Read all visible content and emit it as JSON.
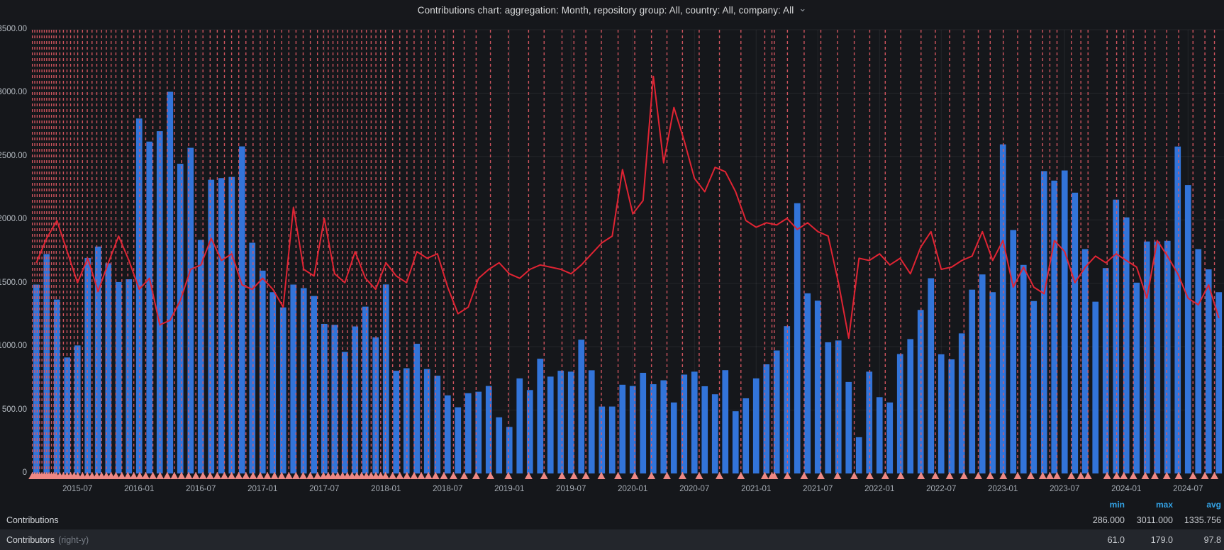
{
  "header": {
    "title": "Contributions chart: aggregation: Month, repository group: All, country: All, company: All"
  },
  "y_axis": {
    "labels": [
      "3500.00",
      "3000.00",
      "2500.00",
      "2000.00",
      "1500.00",
      "1000.00",
      "500.00",
      "0"
    ]
  },
  "x_axis": {
    "labels": [
      "2015-07",
      "2016-01",
      "2016-07",
      "2017-01",
      "2017-07",
      "2018-01",
      "2018-07",
      "2019-01",
      "2019-07",
      "2020-01",
      "2020-07",
      "2021-01",
      "2021-07",
      "2022-01",
      "2022-07",
      "2023-01",
      "2023-07",
      "2024-01",
      "2024-07"
    ]
  },
  "legend": {
    "columns": [
      "min",
      "max",
      "avg"
    ],
    "rows": [
      {
        "label": "Contributions",
        "suffix": "",
        "min": "286.000",
        "max": "3011.000",
        "avg": "1335.756"
      },
      {
        "label": "Contributors",
        "suffix": "(right-y)",
        "min": "61.0",
        "max": "179.0",
        "avg": "97.8"
      }
    ]
  },
  "chart_data": {
    "type": "bar+line",
    "title": "Contributions chart: aggregation: Month, repository group: All, country: All, company: All",
    "left_axis": {
      "label": "Contributions",
      "min": 0,
      "max": 3500,
      "grid": true
    },
    "right_axis": {
      "label": "Contributors",
      "min": 0,
      "max": 200
    },
    "categories": [
      "2015-03",
      "2015-04",
      "2015-05",
      "2015-06",
      "2015-07",
      "2015-08",
      "2015-09",
      "2015-10",
      "2015-11",
      "2015-12",
      "2016-01",
      "2016-02",
      "2016-03",
      "2016-04",
      "2016-05",
      "2016-06",
      "2016-07",
      "2016-08",
      "2016-09",
      "2016-10",
      "2016-11",
      "2016-12",
      "2017-01",
      "2017-02",
      "2017-03",
      "2017-04",
      "2017-05",
      "2017-06",
      "2017-07",
      "2017-08",
      "2017-09",
      "2017-10",
      "2017-11",
      "2017-12",
      "2018-01",
      "2018-02",
      "2018-03",
      "2018-04",
      "2018-05",
      "2018-06",
      "2018-07",
      "2018-08",
      "2018-09",
      "2018-10",
      "2018-11",
      "2018-12",
      "2019-01",
      "2019-02",
      "2019-03",
      "2019-04",
      "2019-05",
      "2019-06",
      "2019-07",
      "2019-08",
      "2019-09",
      "2019-10",
      "2019-11",
      "2019-12",
      "2020-01",
      "2020-02",
      "2020-03",
      "2020-04",
      "2020-05",
      "2020-06",
      "2020-07",
      "2020-08",
      "2020-09",
      "2020-10",
      "2020-11",
      "2020-12",
      "2021-01",
      "2021-02",
      "2021-03",
      "2021-04",
      "2021-05",
      "2021-06",
      "2021-07",
      "2021-08",
      "2021-09",
      "2021-10",
      "2021-11",
      "2021-12",
      "2022-01",
      "2022-02",
      "2022-03",
      "2022-04",
      "2022-05",
      "2022-06",
      "2022-07",
      "2022-08",
      "2022-09",
      "2022-10",
      "2022-11",
      "2022-12",
      "2023-01",
      "2023-02",
      "2023-03",
      "2023-04",
      "2023-05",
      "2023-06",
      "2023-07",
      "2023-08",
      "2023-09",
      "2023-10",
      "2023-11",
      "2023-12",
      "2024-01",
      "2024-02",
      "2024-03",
      "2024-04",
      "2024-05",
      "2024-06",
      "2024-07",
      "2024-08",
      "2024-09",
      "2024-10"
    ],
    "series": [
      {
        "name": "Contributions",
        "type": "bar",
        "axis": "left",
        "color": "#3274d9",
        "stats": {
          "min": 286.0,
          "max": 3011.0,
          "avg": 1335.756
        },
        "values": [
          1490,
          1731,
          1372,
          915,
          1010,
          1700,
          1790,
          1658,
          1510,
          1532,
          2800,
          2618,
          2700,
          3011,
          2443,
          2569,
          1842,
          2317,
          2330,
          2339,
          2580,
          1820,
          1600,
          1430,
          1310,
          1490,
          1462,
          1400,
          1180,
          1172,
          959,
          1160,
          1316,
          1073,
          1491,
          810,
          830,
          1023,
          824,
          771,
          616,
          522,
          633,
          645,
          690,
          443,
          367,
          750,
          658,
          905,
          764,
          810,
          803,
          1055,
          814,
          528,
          528,
          700,
          690,
          794,
          704,
          735,
          560,
          780,
          803,
          688,
          625,
          815,
          491,
          593,
          750,
          861,
          970,
          1162,
          2132,
          1421,
          1363,
          1035,
          1049,
          722,
          286,
          803,
          602,
          560,
          942,
          1060,
          1290,
          1540,
          940,
          900,
          1105,
          1450,
          1570,
          1430,
          2596,
          1920,
          1645,
          1360,
          2385,
          2310,
          2390,
          2215,
          1770,
          1355,
          1620,
          2160,
          2020,
          1505,
          1830,
          1830,
          1835,
          2579,
          2275,
          1770,
          1610,
          1430
        ]
      },
      {
        "name": "Contributors",
        "type": "line",
        "axis": "right",
        "color": "#e02433",
        "stats": {
          "min": 61.0,
          "max": 179.0,
          "avg": 97.8
        },
        "values": [
          95,
          106,
          114,
          100,
          86,
          97,
          82,
          95,
          107,
          96,
          83,
          88,
          67,
          69,
          78,
          92,
          94,
          106,
          96,
          99,
          85,
          83,
          88,
          83,
          75,
          120,
          92,
          89,
          115,
          90,
          86,
          100,
          88,
          83,
          95,
          89,
          86,
          100,
          97,
          99,
          84,
          72,
          75,
          88,
          92,
          95,
          90,
          88,
          92,
          94,
          93,
          92,
          90,
          94,
          99,
          104,
          107,
          137,
          117,
          123,
          179,
          140,
          165,
          150,
          133,
          127,
          138,
          136,
          127,
          114,
          111,
          113,
          112,
          115,
          110,
          113,
          109,
          107,
          86,
          61,
          97,
          96,
          99,
          94,
          97,
          90,
          102,
          109,
          92,
          93,
          96,
          98,
          109,
          96,
          105,
          84,
          93,
          84,
          81,
          105,
          100,
          86,
          93,
          98,
          95,
          99,
          96,
          93,
          79,
          105,
          98,
          90,
          79,
          76,
          85,
          70
        ]
      }
    ],
    "annotation_color": "#e05a64",
    "annotation_marker_color": "#ed8884",
    "annotations_x_percent": [
      0.1,
      0.3,
      0.5,
      0.7,
      0.9,
      1.1,
      1.3,
      1.5,
      1.7,
      1.9,
      2.1,
      2.4,
      2.7,
      3.0,
      3.3,
      3.6,
      3.9,
      4.3,
      4.7,
      5.1,
      5.5,
      5.9,
      6.3,
      6.7,
      7.1,
      7.6,
      8.1,
      8.6,
      9.1,
      9.6,
      10.2,
      10.8,
      11.4,
      12.0,
      12.6,
      13.2,
      13.8,
      14.4,
      15.0,
      15.6,
      16.2,
      16.8,
      17.4,
      18.0,
      18.6,
      19.2,
      19.8,
      20.4,
      21.0,
      21.6,
      22.2,
      22.8,
      23.4,
      24.0,
      24.5,
      24.9,
      25.3,
      25.7,
      26.1,
      26.5,
      26.9,
      27.3,
      27.7,
      28.1,
      28.5,
      28.9,
      29.3,
      29.7,
      30.3,
      30.9,
      31.5,
      32.1,
      32.7,
      33.3,
      33.9,
      34.6,
      35.4,
      36.3,
      37.3,
      38.5,
      40.0,
      41.7,
      43.0,
      44.5,
      45.5,
      46.5,
      47.8,
      49.2,
      50.6,
      52.0,
      53.3,
      54.6,
      56.0,
      57.7,
      59.5,
      61.5,
      62.1,
      62.3,
      63.4,
      64.8,
      66.2,
      67.6,
      69.0,
      70.3,
      71.6,
      72.9,
      74.6,
      75.8,
      77.0,
      78.2,
      79.4,
      80.4,
      81.5,
      82.7,
      83.8,
      84.8,
      85.4,
      86.0,
      87.2,
      88.0,
      88.6,
      90.2,
      91.0,
      91.6,
      92.4,
      93.4,
      94.2,
      95.2,
      96.2,
      97.4,
      98.4,
      99.2
    ],
    "grid_color": "rgba(216,222,230,0.08)"
  }
}
